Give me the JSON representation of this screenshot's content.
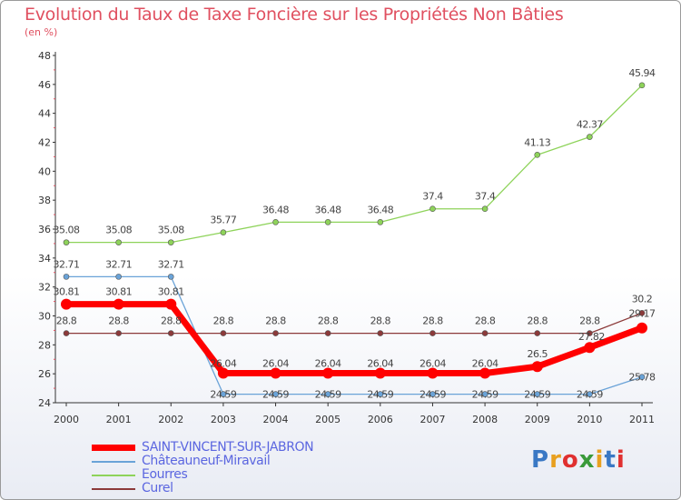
{
  "title": "Evolution du Taux de Taxe Foncière sur les Propriétés Non Bâties",
  "subtitle": "(en %)",
  "logo": {
    "text": "Proxiti",
    "letter_colors": [
      "#3a78c4",
      "#e8a020",
      "#e03030",
      "#3a9a3a",
      "#e8a020",
      "#3a78c4",
      "#e03030"
    ]
  },
  "chart_data": {
    "type": "line",
    "x": [
      "2000",
      "2001",
      "2002",
      "2003",
      "2004",
      "2005",
      "2006",
      "2007",
      "2008",
      "2009",
      "2010",
      "2011"
    ],
    "ylim": [
      24,
      48
    ],
    "yticks": [
      "24",
      "26",
      "28",
      "30",
      "32",
      "34",
      "36",
      "38",
      "40",
      "42",
      "44",
      "46",
      "48"
    ],
    "grid": false,
    "legend_position": "bottom-left",
    "series": [
      {
        "name": "SAINT-VINCENT-SUR-JABRON",
        "color": "#ff0000",
        "values": [
          30.81,
          30.81,
          30.81,
          26.04,
          26.04,
          26.04,
          26.04,
          26.04,
          26.04,
          26.5,
          27.82,
          29.17
        ],
        "labels": [
          "30.81",
          "30.81",
          "30.81",
          "26.04",
          "26.04",
          "26.04",
          "26.04",
          "26.04",
          "26.04",
          "26.5",
          "27.82",
          "29.17"
        ]
      },
      {
        "name": "Châteauneuf-Miravail",
        "color": "#6aa3d8",
        "values": [
          32.71,
          32.71,
          32.71,
          24.59,
          24.59,
          24.59,
          24.59,
          24.59,
          24.59,
          24.59,
          24.59,
          25.78
        ],
        "labels": [
          "32.71",
          "32.71",
          "32.71",
          "24.59",
          "24.59",
          "24.59",
          "24.59",
          "24.59",
          "24.59",
          "24.59",
          "24.59",
          "25.78"
        ]
      },
      {
        "name": "Eourres",
        "color": "#8ed35a",
        "values": [
          35.08,
          35.08,
          35.08,
          35.77,
          36.48,
          36.48,
          36.48,
          37.4,
          37.4,
          41.13,
          42.37,
          45.94
        ],
        "labels": [
          "35.08",
          "35.08",
          "35.08",
          "35.77",
          "36.48",
          "36.48",
          "36.48",
          "37.4",
          "37.4",
          "41.13",
          "42.37",
          "45.94"
        ]
      },
      {
        "name": "Curel",
        "color": "#8c3a3a",
        "values": [
          28.8,
          28.8,
          28.8,
          28.8,
          28.8,
          28.8,
          28.8,
          28.8,
          28.8,
          28.8,
          28.8,
          30.2
        ],
        "labels": [
          "28.8",
          "28.8",
          "28.8",
          "28.8",
          "28.8",
          "28.8",
          "28.8",
          "28.8",
          "28.8",
          "28.8",
          "28.8",
          "30.2"
        ]
      }
    ]
  }
}
